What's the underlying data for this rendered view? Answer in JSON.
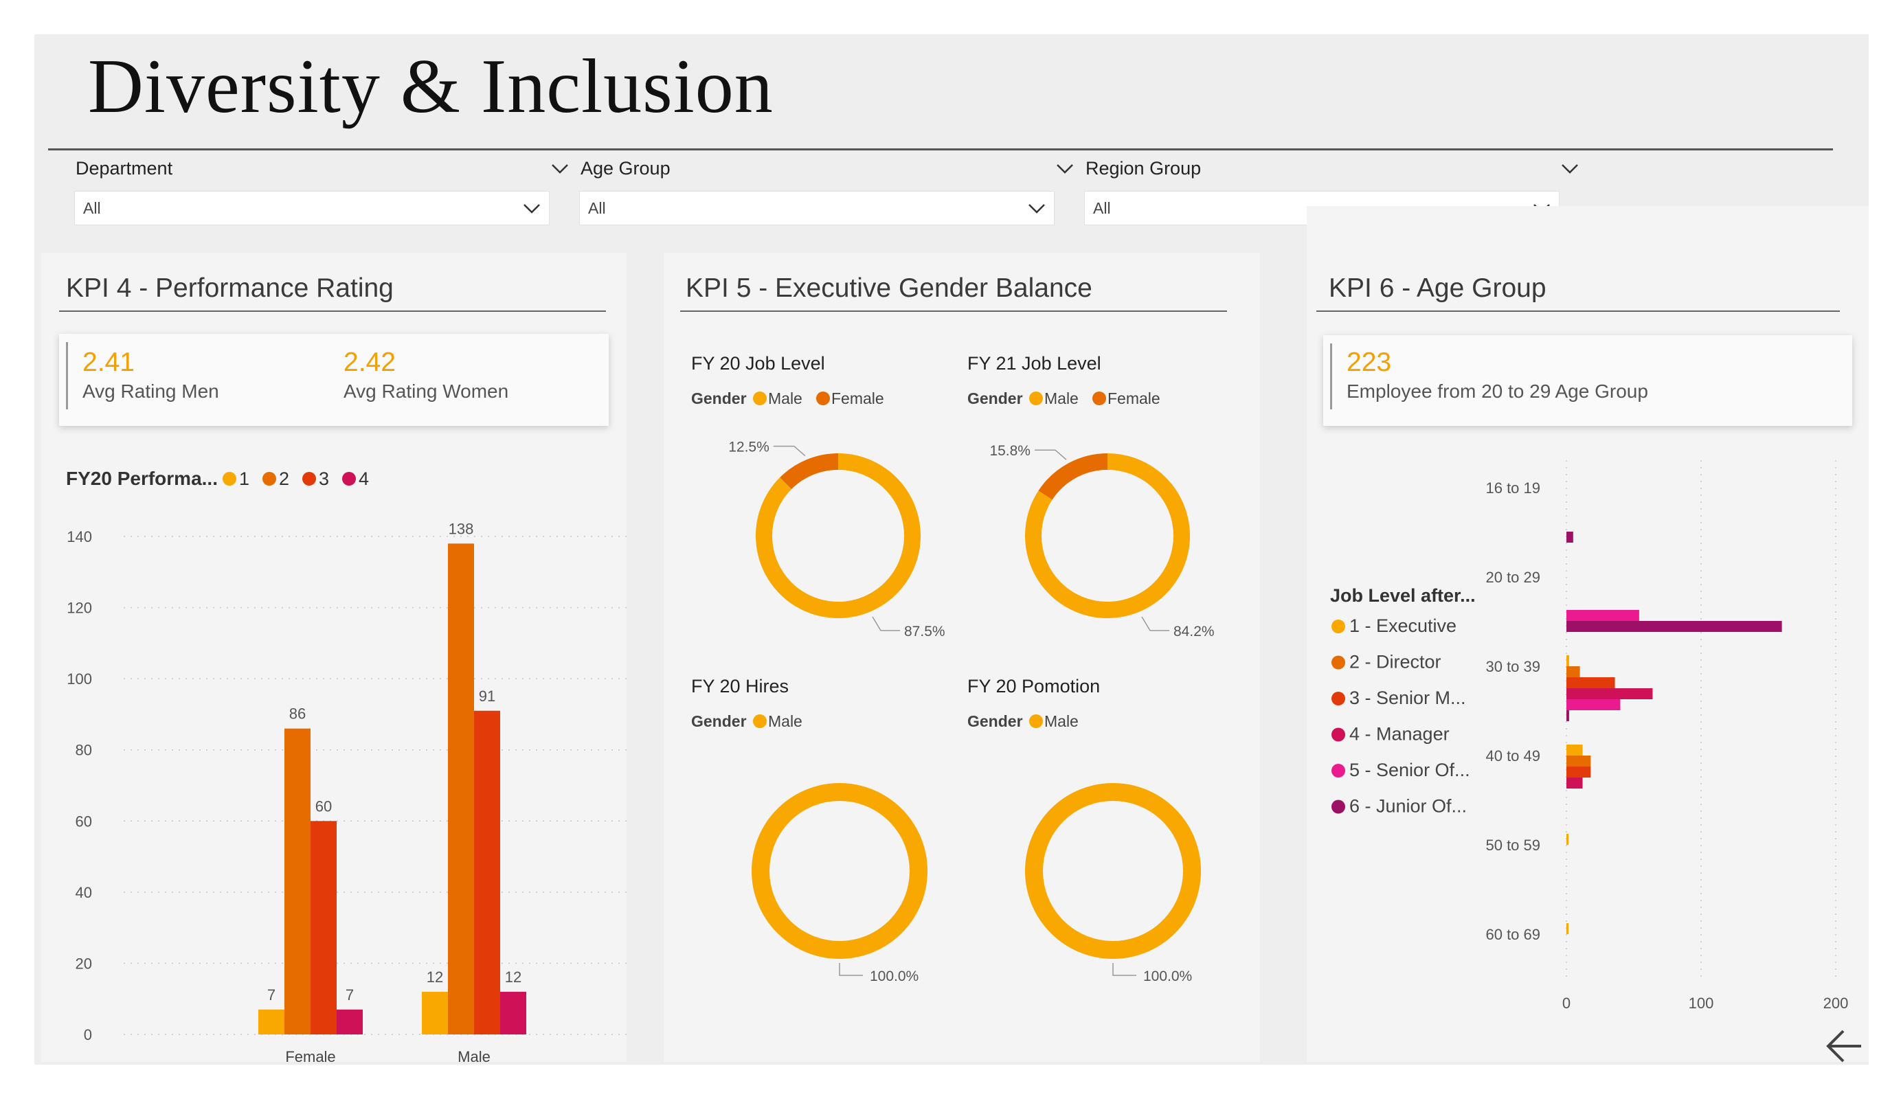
{
  "page": {
    "title": "Diversity & Inclusion"
  },
  "filters": [
    {
      "label": "Department",
      "value": "All"
    },
    {
      "label": "Age Group",
      "value": "All"
    },
    {
      "label": "Region Group",
      "value": "All"
    }
  ],
  "kpi4": {
    "title": "KPI 4 - Performance Rating",
    "card": {
      "men_value": "2.41",
      "men_label": "Avg Rating Men",
      "women_value": "2.42",
      "women_label": "Avg Rating Women"
    }
  },
  "kpi5": {
    "title": "KPI 5 - Executive Gender Balance"
  },
  "kpi6": {
    "title": "KPI 6 - Age Group",
    "card": {
      "value": "223",
      "label": "Employee from 20 to 29 Age Group"
    }
  },
  "colors": {
    "level1": "#f8a800",
    "level2": "#e66c00",
    "level3": "#e23a08",
    "level4": "#cf1157",
    "level5": "#ea1a8f",
    "level6": "#9c1166",
    "male": "#f8a800",
    "female": "#e66c00",
    "accent": "#f2a100"
  },
  "icons": {
    "dropdown": "chevron-down-icon",
    "back": "arrow-left-icon"
  },
  "chart_data": [
    {
      "type": "bar",
      "title": "FY20 Performa...",
      "legend_position": "top-left",
      "legend": [
        "1",
        "2",
        "3",
        "4"
      ],
      "categories": [
        "Female",
        "Male"
      ],
      "series": [
        {
          "name": "1",
          "values": [
            7,
            12
          ],
          "labels": [
            "7",
            "12"
          ]
        },
        {
          "name": "2",
          "values": [
            86,
            138
          ],
          "labels": [
            "86",
            "138"
          ]
        },
        {
          "name": "3",
          "values": [
            60,
            91
          ],
          "labels": [
            "60",
            "91"
          ]
        },
        {
          "name": "4",
          "values": [
            7,
            12
          ],
          "labels": [
            "7",
            "12"
          ]
        }
      ],
      "yticks": [
        "0",
        "20",
        "40",
        "60",
        "80",
        "100",
        "120",
        "140"
      ],
      "ylim": [
        0,
        140
      ],
      "grid": true
    },
    {
      "type": "pie",
      "donut": true,
      "title": "FY 20 Job Level",
      "legend_title": "Gender",
      "legend": [
        "Male",
        "Female"
      ],
      "slices": [
        {
          "name": "Male",
          "value": 87.5,
          "label": "87.5%"
        },
        {
          "name": "Female",
          "value": 12.5,
          "label": "12.5%"
        }
      ]
    },
    {
      "type": "pie",
      "donut": true,
      "title": "FY 21 Job Level",
      "legend_title": "Gender",
      "legend": [
        "Male",
        "Female"
      ],
      "slices": [
        {
          "name": "Male",
          "value": 84.2,
          "label": "84.2%"
        },
        {
          "name": "Female",
          "value": 15.8,
          "label": "15.8%"
        }
      ]
    },
    {
      "type": "pie",
      "donut": true,
      "title": "FY 20 Hires",
      "legend_title": "Gender",
      "legend": [
        "Male"
      ],
      "slices": [
        {
          "name": "Male",
          "value": 100.0,
          "label": "100.0%"
        }
      ]
    },
    {
      "type": "pie",
      "donut": true,
      "title": "FY 20 Pomotion",
      "legend_title": "Gender",
      "legend": [
        "Male"
      ],
      "slices": [
        {
          "name": "Male",
          "value": 100.0,
          "label": "100.0%"
        }
      ]
    },
    {
      "type": "bar",
      "orientation": "horizontal",
      "legend_title": "Job Level after...",
      "legend_position": "left",
      "legend": [
        "1 - Executive",
        "2 - Director",
        "3 - Senior M...",
        "4 - Manager",
        "5 - Senior Of...",
        "6 - Junior Of..."
      ],
      "categories": [
        "16 to 19",
        "20 to 29",
        "30 to 39",
        "40 to 49",
        "50 to 59",
        "60 to 69"
      ],
      "series": [
        {
          "name": "1 - Executive",
          "values": [
            0,
            0,
            2,
            12,
            1,
            1
          ]
        },
        {
          "name": "2 - Director",
          "values": [
            0,
            0,
            10,
            18,
            0,
            0
          ]
        },
        {
          "name": "3 - Senior M...",
          "values": [
            0,
            0,
            36,
            18,
            0,
            0
          ]
        },
        {
          "name": "4 - Manager",
          "values": [
            0,
            0,
            64,
            12,
            0,
            0
          ]
        },
        {
          "name": "5 - Senior Of...",
          "values": [
            0,
            54,
            40,
            0,
            0,
            0
          ]
        },
        {
          "name": "6 - Junior Of...",
          "values": [
            5,
            160,
            2,
            0,
            0,
            0
          ]
        }
      ],
      "xticks": [
        "0",
        "100",
        "200"
      ],
      "xlim": [
        0,
        200
      ],
      "grid": true
    }
  ]
}
